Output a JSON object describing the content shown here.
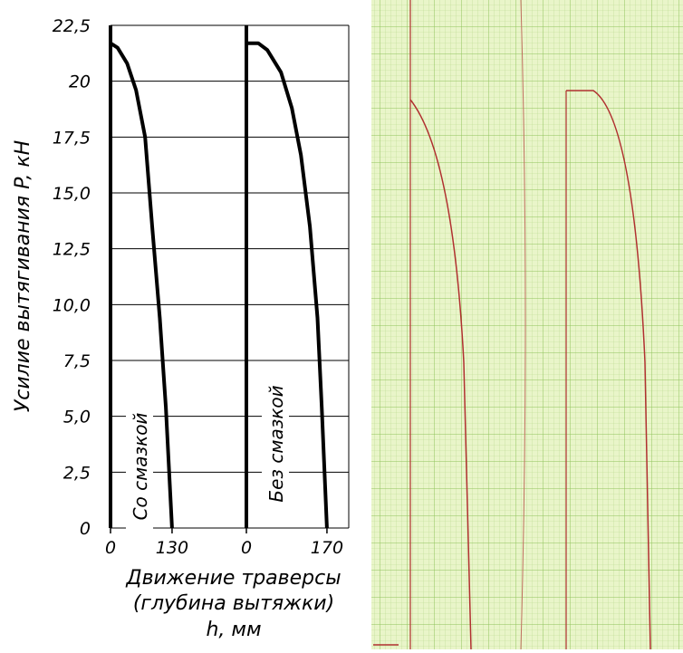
{
  "chart_data": {
    "type": "line",
    "ylabel": "Усилие вытягивания P, кН",
    "xlabel": [
      "Движение  траверсы",
      "(глубина  вытяжки)",
      "h,  мм"
    ],
    "ylim": [
      0,
      22.5
    ],
    "yticks": [
      0,
      {
        "value": 2.5,
        "label": "2,5"
      },
      {
        "value": 5,
        "label": "5,0"
      },
      {
        "value": 7.5,
        "label": "7,5"
      },
      {
        "value": 10,
        "label": "10,0"
      },
      {
        "value": 12.5,
        "label": "12,5"
      },
      {
        "value": 15,
        "label": "15,0"
      },
      {
        "value": 17.5,
        "label": "17,5"
      },
      20,
      {
        "value": 22.5,
        "label": "22,5"
      }
    ],
    "grid": true,
    "color": "#000000",
    "panels": [
      {
        "name": "Со смазкой",
        "xlim": [
          0,
          287
        ],
        "xticks": [
          0,
          130
        ],
        "x": [
          0,
          15,
          35,
          54,
          73,
          88,
          104,
          117,
          130
        ],
        "values": [
          21.7,
          21.5,
          20.8,
          19.6,
          17.5,
          13.5,
          9.4,
          5.4,
          0
        ]
      },
      {
        "name": "Без смазкой",
        "xlim": [
          0,
          216
        ],
        "xticks": [
          0,
          170
        ],
        "x": [
          0,
          25,
          44,
          73,
          96,
          115,
          134,
          150,
          159,
          170
        ],
        "values": [
          21.7,
          21.7,
          21.4,
          20.4,
          18.8,
          16.7,
          13.5,
          9.4,
          5.4,
          0
        ]
      }
    ]
  }
}
